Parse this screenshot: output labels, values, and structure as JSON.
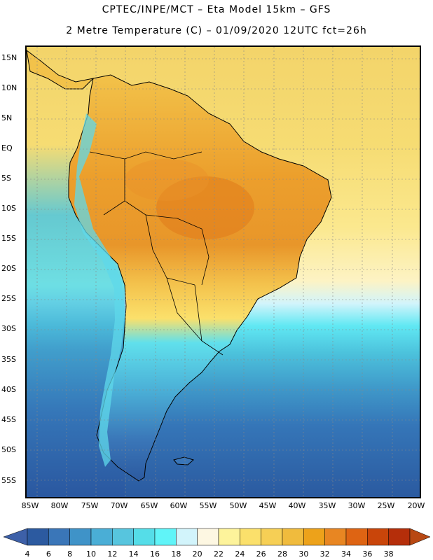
{
  "header": {
    "line1": "CPTEC/INPE/MCT –  Eta Model 15km – GFS",
    "line2": "2 Metre Temperature (C) – 01/09/2020 12UTC fct=26h"
  },
  "axes": {
    "lat_labels": [
      "15N",
      "10N",
      "5N",
      "EQ",
      "5S",
      "10S",
      "15S",
      "20S",
      "25S",
      "30S",
      "35S",
      "40S",
      "45S",
      "50S",
      "55S"
    ],
    "lon_labels": [
      "85W",
      "80W",
      "75W",
      "70W",
      "65W",
      "60W",
      "55W",
      "50W",
      "45W",
      "40W",
      "35W",
      "30W",
      "25W",
      "20W"
    ]
  },
  "colorbar": {
    "labels": [
      "4",
      "6",
      "8",
      "10",
      "12",
      "14",
      "16",
      "18",
      "20",
      "22",
      "24",
      "26",
      "28",
      "30",
      "32",
      "34",
      "36",
      "38"
    ],
    "colors": [
      "#2c5aa0",
      "#3a76b8",
      "#3f93c8",
      "#4aaed6",
      "#57c5de",
      "#55dde8",
      "#60f4f8",
      "#d2f4fb",
      "#fdf7e2",
      "#fdf39b",
      "#fbe06b",
      "#f6cf55",
      "#f0bb3d",
      "#eda21a",
      "#e88622",
      "#de6413",
      "#c9450a",
      "#b52e0a"
    ],
    "left_arrow_color": "#3d60a8",
    "right_arrow_color": "#b84813"
  },
  "map": {
    "ocean_warm": "#f3d46a",
    "ocean_cool": "#2f64aa",
    "land_hot": "#e79a2c"
  }
}
